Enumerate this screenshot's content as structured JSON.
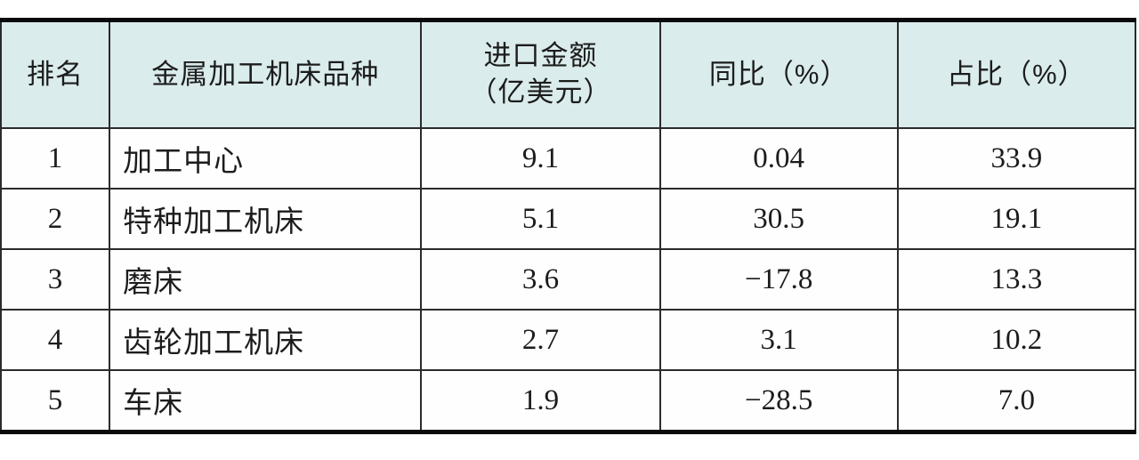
{
  "colors": {
    "header_background": "#daeceb",
    "inner_border": "#2b2b2b",
    "outer_rule": "#0a0a0a",
    "text": "#1c1c1c",
    "row_background": "#fefefe"
  },
  "table": {
    "header_lines": [
      [
        "排名"
      ],
      [
        "金属加工机床品种"
      ],
      [
        "进口金额",
        "（亿美元）"
      ],
      [
        "同比（%）"
      ],
      [
        "占比（%）"
      ]
    ]
  },
  "chart_data": {
    "type": "table",
    "title": "",
    "columns": [
      "排名",
      "金属加工机床品种",
      "进口金额（亿美元）",
      "同比（%）",
      "占比（%）"
    ],
    "rows": [
      [
        "1",
        "加工中心",
        "9.1",
        "0.04",
        "33.9"
      ],
      [
        "2",
        "特种加工机床",
        "5.1",
        "30.5",
        "19.1"
      ],
      [
        "3",
        "磨床",
        "3.6",
        "−17.8",
        "13.3"
      ],
      [
        "4",
        "齿轮加工机床",
        "2.7",
        "3.1",
        "10.2"
      ],
      [
        "5",
        "车床",
        "1.9",
        "−28.5",
        "7.0"
      ]
    ]
  }
}
